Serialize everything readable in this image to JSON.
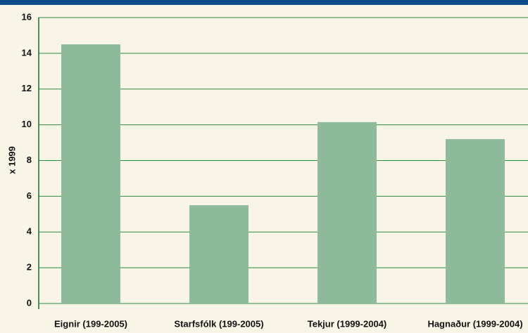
{
  "chart_data": {
    "type": "bar",
    "y_label": "x 1999",
    "categories": [
      "Eignir (199-2005)",
      "Starfsfólk (199-2005)",
      "Tekjur (1999-2004)",
      "Hagnaður (1999-2004)"
    ],
    "values": [
      14.5,
      5.5,
      10.15,
      9.2
    ],
    "color": "#8fbb9a",
    "ylim": [
      0,
      16
    ],
    "yticks": [
      0,
      2,
      4,
      6,
      8,
      10,
      12,
      14,
      16
    ],
    "grid": true
  }
}
